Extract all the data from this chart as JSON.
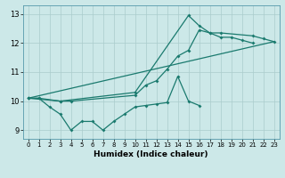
{
  "xlabel": "Humidex (Indice chaleur)",
  "bg_color": "#cce8e8",
  "line_color": "#1a7a6e",
  "grid_color": "#aacccc",
  "xlim": [
    -0.5,
    23.5
  ],
  "ylim": [
    8.7,
    13.3
  ],
  "yticks": [
    9,
    10,
    11,
    12,
    13
  ],
  "xticks": [
    0,
    1,
    2,
    3,
    4,
    5,
    6,
    7,
    8,
    9,
    10,
    11,
    12,
    13,
    14,
    15,
    16,
    17,
    18,
    19,
    20,
    21,
    22,
    23
  ],
  "line1_x": [
    0,
    1,
    2,
    3,
    4,
    5,
    6,
    7,
    8,
    9,
    10,
    11,
    12,
    13,
    14,
    15,
    16
  ],
  "line1_y": [
    10.1,
    10.1,
    9.8,
    9.55,
    9.0,
    9.3,
    9.3,
    9.0,
    9.3,
    9.55,
    9.8,
    9.85,
    9.9,
    9.95,
    10.85,
    10.0,
    9.85
  ],
  "line2_x": [
    0,
    1,
    3,
    4,
    10,
    11,
    12,
    13,
    14,
    15,
    16,
    17,
    18,
    19,
    20,
    21
  ],
  "line2_y": [
    10.1,
    10.1,
    10.0,
    10.0,
    10.2,
    10.55,
    10.7,
    11.1,
    11.55,
    11.75,
    12.45,
    12.35,
    12.2,
    12.2,
    12.1,
    12.0
  ],
  "line3_x": [
    0,
    3,
    10,
    15,
    16,
    17,
    18,
    21,
    22,
    23
  ],
  "line3_y": [
    10.1,
    10.0,
    10.3,
    12.95,
    12.6,
    12.35,
    12.35,
    12.25,
    12.15,
    12.05
  ],
  "line4_x": [
    0,
    23
  ],
  "line4_y": [
    10.1,
    12.05
  ]
}
